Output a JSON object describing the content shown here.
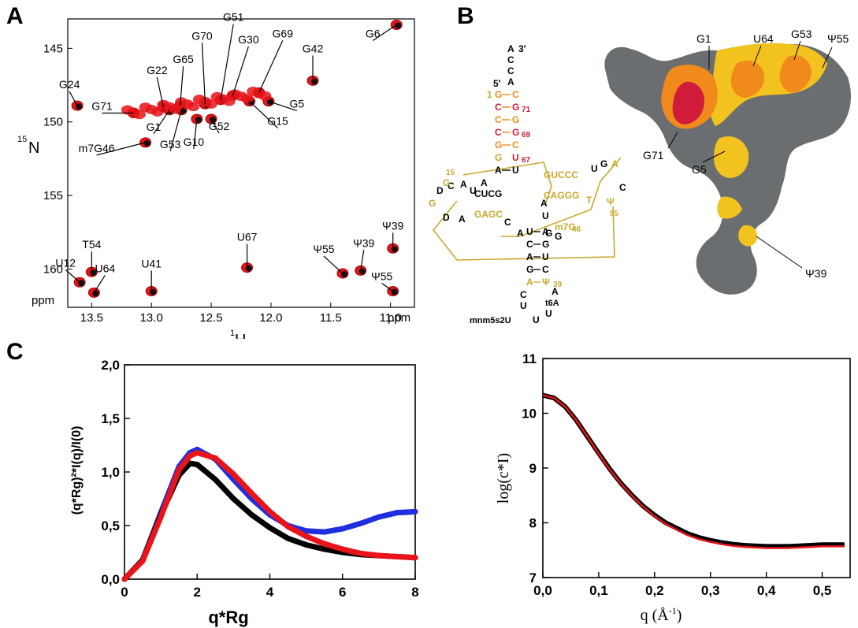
{
  "panels": {
    "a": "A",
    "b": "B",
    "c": "C"
  },
  "panel_a": {
    "xlabel_sup": "1",
    "xlabel_main": "H",
    "ylabel_sup": "15",
    "ylabel_main": "N",
    "unit": "ppm",
    "x_ticks": [
      "13.5",
      "13.0",
      "12.5",
      "12.0",
      "11.5",
      "11.0"
    ],
    "y_ticks": [
      "145",
      "150",
      "155",
      "160"
    ],
    "peak_labels": [
      {
        "text": "G24",
        "x": 13.62,
        "y": 148.9
      },
      {
        "text": "G71",
        "x": 13.15,
        "y": 149.4
      },
      {
        "text": "G22",
        "x": 12.9,
        "y": 149.0
      },
      {
        "text": "G65",
        "x": 12.76,
        "y": 148.9
      },
      {
        "text": "G70",
        "x": 12.55,
        "y": 148.8
      },
      {
        "text": "G51",
        "x": 12.42,
        "y": 148.5
      },
      {
        "text": "G30",
        "x": 12.32,
        "y": 148.2
      },
      {
        "text": "G69",
        "x": 12.1,
        "y": 148.0
      },
      {
        "text": "G42",
        "x": 11.65,
        "y": 147.2
      },
      {
        "text": "G6",
        "x": 10.95,
        "y": 143.4
      },
      {
        "text": "G1",
        "x": 12.85,
        "y": 149.2
      },
      {
        "text": "G53",
        "x": 12.75,
        "y": 149.2
      },
      {
        "text": "G10",
        "x": 12.62,
        "y": 149.8
      },
      {
        "text": "G52",
        "x": 12.5,
        "y": 149.8
      },
      {
        "text": "G15",
        "x": 12.18,
        "y": 148.6
      },
      {
        "text": "G5",
        "x": 12.02,
        "y": 148.6
      },
      {
        "text": "m7G46",
        "x": 13.05,
        "y": 151.4
      },
      {
        "text": "U67",
        "x": 12.2,
        "y": 159.9
      },
      {
        "text": "Ψ55",
        "x": 11.4,
        "y": 160.3
      },
      {
        "text": "Ψ39",
        "x": 11.25,
        "y": 160.1
      },
      {
        "text": "Ψ39",
        "x": 10.98,
        "y": 158.6
      },
      {
        "text": "Ψ55",
        "x": 10.98,
        "y": 161.5
      },
      {
        "text": "U12",
        "x": 13.6,
        "y": 160.9
      },
      {
        "text": "T54",
        "x": 13.5,
        "y": 160.2
      },
      {
        "text": "U64",
        "x": 13.48,
        "y": 161.6
      },
      {
        "text": "U41",
        "x": 13.0,
        "y": 161.5
      }
    ]
  },
  "panel_b": {
    "prime3": "3′",
    "prime5": "5′",
    "stem_top": [
      "A",
      "C",
      "C",
      "A"
    ],
    "acceptor_left": [
      "G",
      "C",
      "C",
      "C",
      "G",
      "G",
      "A"
    ],
    "acceptor_right": [
      "C",
      "G",
      "G",
      "G",
      "C",
      "U",
      "U"
    ],
    "acceptor_nums_left": "1",
    "acceptor_nums_right": [
      "71",
      "69",
      "67"
    ],
    "d_arm": [
      "C",
      "D",
      "A",
      "G",
      "G",
      "D",
      "A"
    ],
    "d_stem": [
      "CUCG",
      "GAGC"
    ],
    "t_stem": [
      "GUCCC",
      "CAGGG"
    ],
    "t_loop": [
      "U",
      "G",
      "A",
      "C",
      "T",
      "Ψ"
    ],
    "num_15": "15",
    "num_55": "55",
    "num_46": "46",
    "m7g": "m7G",
    "anticodon_stem": [
      [
        "U",
        "A"
      ],
      [
        "C",
        "G"
      ],
      [
        "A",
        "U"
      ],
      [
        "G",
        "C"
      ],
      [
        "A",
        "Ψ"
      ]
    ],
    "num_39": "39",
    "anticodon_loop": [
      "C",
      "U",
      "mnm5s2U",
      "U",
      "U",
      "t6A",
      "A"
    ],
    "extras": [
      "A",
      "U",
      "C",
      "A",
      "G",
      "G",
      "U",
      "A"
    ],
    "surface_labels": [
      "G1",
      "U64",
      "G53",
      "Ψ55",
      "G71",
      "G5",
      "Ψ39"
    ],
    "colors": {
      "red": "#d01c3a",
      "orange": "#f08a1c",
      "yellow": "#f2c31e",
      "gray": "#6b6e70",
      "olive": "#c9a82c"
    }
  },
  "panel_c_left": {
    "chart_data": {
      "type": "scatter",
      "xlabel": "q*Rg",
      "ylabel": "(q*Rg)²*I(q)/I(0)",
      "xlim": [
        0,
        8
      ],
      "ylim": [
        0,
        2.0
      ],
      "x_ticks": [
        "0",
        "2",
        "4",
        "6",
        "8"
      ],
      "y_ticks": [
        "0,0",
        "0,5",
        "1,0",
        "1,5",
        "2,0"
      ],
      "series": [
        {
          "color": "#1f2fe0",
          "x": [
            0,
            0.5,
            1,
            1.5,
            1.8,
            2,
            2.5,
            3,
            3.5,
            4,
            4.5,
            5,
            5.5,
            6,
            6.5,
            7,
            7.5,
            8
          ],
          "y": [
            0,
            0.18,
            0.62,
            1.05,
            1.18,
            1.21,
            1.12,
            0.93,
            0.75,
            0.6,
            0.5,
            0.45,
            0.44,
            0.47,
            0.52,
            0.58,
            0.62,
            0.63
          ]
        },
        {
          "color": "#000000",
          "x": [
            0,
            0.5,
            1,
            1.5,
            1.8,
            2,
            2.5,
            3,
            3.5,
            4,
            4.5,
            5,
            5.5,
            6,
            6.5,
            7,
            7.5,
            8
          ],
          "y": [
            0,
            0.18,
            0.6,
            0.97,
            1.08,
            1.07,
            0.93,
            0.75,
            0.6,
            0.48,
            0.38,
            0.32,
            0.28,
            0.25,
            0.23,
            0.22,
            0.21,
            0.2
          ]
        },
        {
          "color": "#e8141a",
          "x": [
            0,
            0.5,
            1,
            1.5,
            1.8,
            2,
            2.5,
            3,
            3.5,
            4,
            4.5,
            5,
            5.5,
            6,
            6.5,
            7,
            7.5,
            8
          ],
          "y": [
            0,
            0.17,
            0.58,
            1.02,
            1.15,
            1.18,
            1.13,
            0.98,
            0.8,
            0.63,
            0.49,
            0.4,
            0.33,
            0.28,
            0.24,
            0.22,
            0.21,
            0.2
          ]
        }
      ]
    }
  },
  "panel_c_right": {
    "chart_data": {
      "type": "line",
      "xlabel": "q (Å",
      "xlabel_sup": "-1",
      "xlabel_close": ")",
      "ylabel": "log(c*I)",
      "xlim": [
        0,
        0.55
      ],
      "ylim": [
        7,
        11
      ],
      "x_ticks": [
        "0,0",
        "0,1",
        "0,2",
        "0,3",
        "0,4",
        "0,5"
      ],
      "y_ticks": [
        "7",
        "8",
        "9",
        "10",
        "11"
      ],
      "series": [
        {
          "color": "#000000",
          "x": [
            0,
            0.02,
            0.04,
            0.06,
            0.08,
            0.1,
            0.12,
            0.14,
            0.16,
            0.18,
            0.2,
            0.22,
            0.24,
            0.26,
            0.28,
            0.3,
            0.32,
            0.34,
            0.36,
            0.38,
            0.4,
            0.42,
            0.44,
            0.46,
            0.48,
            0.5,
            0.52,
            0.54
          ],
          "y": [
            10.33,
            10.28,
            10.12,
            9.87,
            9.57,
            9.27,
            8.98,
            8.72,
            8.5,
            8.3,
            8.14,
            8.0,
            7.9,
            7.8,
            7.73,
            7.68,
            7.64,
            7.61,
            7.59,
            7.58,
            7.57,
            7.57,
            7.57,
            7.58,
            7.59,
            7.6,
            7.6,
            7.6
          ]
        },
        {
          "color": "#e8141a",
          "x": [
            0,
            0.02,
            0.04,
            0.06,
            0.08,
            0.1,
            0.12,
            0.14,
            0.16,
            0.18,
            0.2,
            0.22,
            0.24,
            0.26,
            0.28,
            0.3,
            0.32,
            0.34,
            0.36,
            0.38,
            0.4,
            0.42,
            0.44,
            0.46,
            0.48,
            0.5,
            0.52,
            0.54
          ],
          "y": [
            10.33,
            10.28,
            10.12,
            9.87,
            9.57,
            9.26,
            8.97,
            8.71,
            8.49,
            8.29,
            8.12,
            7.98,
            7.87,
            7.77,
            7.7,
            7.65,
            7.61,
            7.58,
            7.56,
            7.55,
            7.54,
            7.54,
            7.54,
            7.55,
            7.56,
            7.57,
            7.57,
            7.57
          ]
        }
      ]
    }
  }
}
